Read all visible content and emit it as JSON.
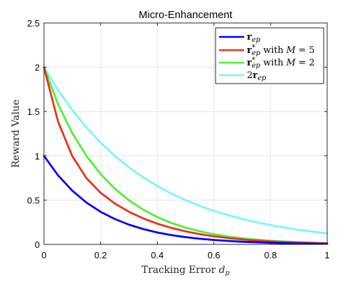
{
  "chart_data": {
    "type": "line",
    "title": "Micro-Enhancement",
    "xlabel": "Tracking Error d_p",
    "ylabel": "Reward Value",
    "xlim": [
      0,
      1
    ],
    "ylim": [
      0,
      2.5
    ],
    "x_ticks": [
      "0",
      "0.2",
      "0.4",
      "0.6",
      "0.8",
      "1"
    ],
    "y_ticks": [
      "0",
      "0.5",
      "1",
      "1.5",
      "2",
      "2.5"
    ],
    "grid": true,
    "legend_position": "top-right",
    "x": [
      0,
      0.05,
      0.1,
      0.15,
      0.2,
      0.25,
      0.3,
      0.35,
      0.4,
      0.45,
      0.5,
      0.55,
      0.6,
      0.65,
      0.7,
      0.75,
      0.8,
      0.85,
      0.9,
      0.95,
      1.0
    ],
    "series": [
      {
        "name": "r_ep",
        "color": "#0000ff",
        "values": [
          1.0,
          0.779,
          0.607,
          0.472,
          0.368,
          0.287,
          0.223,
          0.174,
          0.135,
          0.105,
          0.082,
          0.064,
          0.05,
          0.039,
          0.03,
          0.024,
          0.018,
          0.014,
          0.011,
          0.009,
          0.007
        ]
      },
      {
        "name": "r*_ep with M = 5",
        "color": "#e8321e",
        "values": [
          2.0,
          1.384,
          0.997,
          0.748,
          0.583,
          0.462,
          0.369,
          0.294,
          0.234,
          0.186,
          0.147,
          0.116,
          0.091,
          0.072,
          0.056,
          0.044,
          0.034,
          0.026,
          0.02,
          0.016,
          0.012
        ]
      },
      {
        "name": "r*_ep with M = 2",
        "color": "#4cf232",
        "values": [
          2.0,
          1.581,
          1.256,
          0.999,
          0.794,
          0.63,
          0.498,
          0.393,
          0.309,
          0.242,
          0.19,
          0.148,
          0.115,
          0.089,
          0.069,
          0.054,
          0.041,
          0.032,
          0.025,
          0.019,
          0.014
        ]
      },
      {
        "name": "2r_ep",
        "color": "#7df5f5",
        "values": [
          2.0,
          1.741,
          1.516,
          1.32,
          1.149,
          1.0,
          0.871,
          0.758,
          0.66,
          0.574,
          0.5,
          0.435,
          0.379,
          0.33,
          0.287,
          0.25,
          0.218,
          0.19,
          0.165,
          0.144,
          0.125
        ]
      }
    ]
  }
}
